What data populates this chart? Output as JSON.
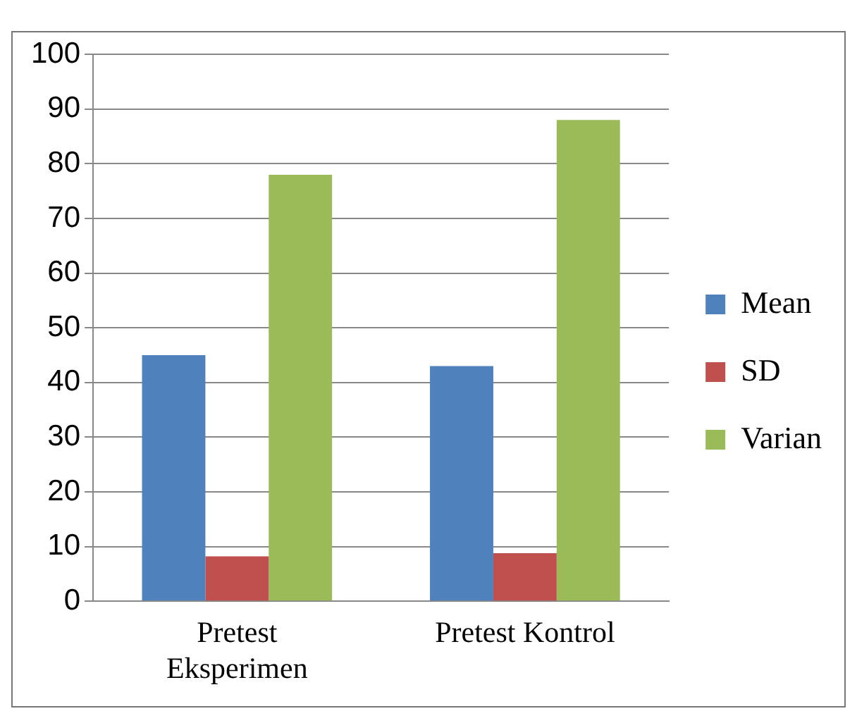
{
  "chart_data": {
    "type": "bar",
    "categories": [
      "Pretest Eksperimen",
      "Pretest Kontrol"
    ],
    "series": [
      {
        "name": "Mean",
        "color": "#4f81bd",
        "values": [
          45,
          43
        ]
      },
      {
        "name": "SD",
        "color": "#c0504d",
        "values": [
          8.2,
          8.8
        ]
      },
      {
        "name": "Varian",
        "color": "#9bbb59",
        "values": [
          78,
          88
        ]
      }
    ],
    "ylim": [
      0,
      100
    ],
    "yticks": [
      0,
      10,
      20,
      30,
      40,
      50,
      60,
      70,
      80,
      90,
      100
    ],
    "grid": "y",
    "legend": "right"
  }
}
